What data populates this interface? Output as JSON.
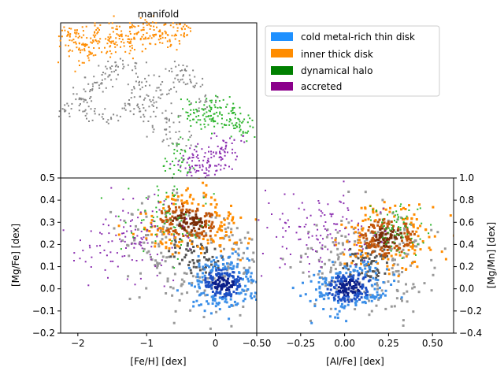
{
  "chart_data": [
    {
      "id": "manifold",
      "type": "scatter",
      "title": "manifold",
      "xlabel": "",
      "ylabel": "",
      "axes_visible": false,
      "xlim": [
        0,
        1
      ],
      "ylim": [
        0,
        1
      ],
      "series": [
        {
          "name": "cold metal-rich thin disk",
          "points": []
        },
        {
          "name": "inner thick disk",
          "region": "top-left band",
          "points": [
            [
              0.03,
              0.93
            ],
            [
              0.08,
              0.95
            ],
            [
              0.12,
              0.88
            ],
            [
              0.18,
              0.96
            ],
            [
              0.22,
              0.9
            ],
            [
              0.28,
              0.97
            ],
            [
              0.33,
              0.92
            ],
            [
              0.38,
              0.98
            ],
            [
              0.42,
              0.94
            ],
            [
              0.48,
              0.99
            ],
            [
              0.52,
              0.93
            ],
            [
              0.58,
              0.97
            ],
            [
              0.62,
              0.95
            ],
            [
              0.05,
              0.85
            ],
            [
              0.1,
              0.8
            ],
            [
              0.15,
              0.86
            ],
            [
              0.2,
              0.82
            ],
            [
              0.26,
              0.87
            ],
            [
              0.32,
              0.85
            ],
            [
              0.4,
              0.88
            ],
            [
              0.46,
              0.9
            ],
            [
              0.55,
              0.89
            ]
          ]
        },
        {
          "name": "dynamical halo",
          "region": "right lobe",
          "points": [
            [
              0.65,
              0.43
            ],
            [
              0.7,
              0.45
            ],
            [
              0.74,
              0.42
            ],
            [
              0.79,
              0.47
            ],
            [
              0.84,
              0.44
            ],
            [
              0.88,
              0.4
            ],
            [
              0.92,
              0.36
            ],
            [
              0.9,
              0.33
            ],
            [
              0.85,
              0.38
            ],
            [
              0.78,
              0.39
            ],
            [
              0.72,
              0.37
            ],
            [
              0.6,
              0.2
            ],
            [
              0.58,
              0.1
            ],
            [
              0.62,
              0.06
            ]
          ]
        },
        {
          "name": "accreted",
          "region": "lower right",
          "points": [
            [
              0.62,
              0.12
            ],
            [
              0.67,
              0.1
            ],
            [
              0.72,
              0.14
            ],
            [
              0.77,
              0.18
            ],
            [
              0.82,
              0.22
            ],
            [
              0.86,
              0.24
            ],
            [
              0.78,
              0.08
            ],
            [
              0.7,
              0.06
            ],
            [
              0.84,
              0.12
            ]
          ]
        },
        {
          "name": "other",
          "color": "#888888",
          "region": "central mass",
          "points": [
            [
              0.03,
              0.45
            ],
            [
              0.08,
              0.5
            ],
            [
              0.12,
              0.55
            ],
            [
              0.18,
              0.6
            ],
            [
              0.22,
              0.66
            ],
            [
              0.28,
              0.7
            ],
            [
              0.33,
              0.72
            ],
            [
              0.38,
              0.62
            ],
            [
              0.42,
              0.55
            ],
            [
              0.48,
              0.5
            ],
            [
              0.52,
              0.58
            ],
            [
              0.58,
              0.65
            ],
            [
              0.62,
              0.7
            ],
            [
              0.68,
              0.6
            ],
            [
              0.72,
              0.5
            ],
            [
              0.55,
              0.38
            ],
            [
              0.5,
              0.3
            ],
            [
              0.45,
              0.42
            ],
            [
              0.35,
              0.45
            ],
            [
              0.25,
              0.4
            ],
            [
              0.15,
              0.42
            ],
            [
              0.6,
              0.25
            ]
          ]
        }
      ]
    },
    {
      "id": "feh_mgfe",
      "type": "scatter",
      "xlabel": "[Fe/H] [dex]",
      "ylabel": "[Mg/Fe] [dex]",
      "xlim": [
        -2.25,
        0.6
      ],
      "ylim": [
        -0.2,
        0.5
      ],
      "xticks": [
        -2,
        -1,
        0
      ],
      "xtick_labels": [
        "−2",
        "−1",
        "0"
      ],
      "yticks": [
        -0.2,
        -0.1,
        0.0,
        0.1,
        0.2,
        0.3,
        0.4,
        0.5
      ],
      "ytick_labels": [
        "−0.2",
        "−0.1",
        "0.0",
        "0.1",
        "0.2",
        "0.3",
        "0.4",
        "0.5"
      ],
      "series": [
        {
          "name": "other",
          "color": "#888888",
          "center": [
            -0.3,
            0.15
          ],
          "spread": [
            0.55,
            0.1
          ],
          "angle": -0.6,
          "count": 260
        },
        {
          "name": "inner thick disk",
          "center": [
            -0.4,
            0.31
          ],
          "spread": [
            0.35,
            0.06
          ],
          "angle": -0.25,
          "count": 300
        },
        {
          "name": "cold metal-rich thin disk",
          "center": [
            0.1,
            0.03
          ],
          "spread": [
            0.22,
            0.05
          ],
          "angle": -0.1,
          "count": 300
        },
        {
          "name": "accreted",
          "center": [
            -1.3,
            0.22
          ],
          "spread": [
            0.45,
            0.09
          ],
          "angle": -0.15,
          "count": 120
        },
        {
          "name": "dynamical halo",
          "center": [
            -0.7,
            0.33
          ],
          "spread": [
            0.35,
            0.08
          ],
          "angle": 0.0,
          "count": 70
        }
      ]
    },
    {
      "id": "alfe_mgmn",
      "type": "scatter",
      "xlabel": "[Al/Fe] [dex]",
      "ylabel": "[Mg/Mn] [dex]",
      "ylabel_side": "right",
      "xlim": [
        -0.5,
        0.62
      ],
      "ylim": [
        -0.4,
        1.0
      ],
      "xticks": [
        -0.5,
        -0.25,
        0.0,
        0.25,
        0.5
      ],
      "xtick_labels": [
        "−0.50",
        "−0.25",
        "0.00",
        "0.25",
        "0.50"
      ],
      "yticks": [
        -0.4,
        -0.2,
        0.0,
        0.2,
        0.4,
        0.6,
        0.8,
        1.0
      ],
      "ytick_labels": [
        "−0.4",
        "−0.2",
        "0.0",
        "0.2",
        "0.4",
        "0.6",
        "0.8",
        "1.0"
      ],
      "series": [
        {
          "name": "other",
          "color": "#888888",
          "center": [
            0.12,
            0.25
          ],
          "spread": [
            0.18,
            0.22
          ],
          "angle": 0.8,
          "count": 260
        },
        {
          "name": "inner thick disk",
          "center": [
            0.24,
            0.48
          ],
          "spread": [
            0.12,
            0.13
          ],
          "angle": 0.3,
          "count": 300
        },
        {
          "name": "cold metal-rich thin disk",
          "center": [
            0.02,
            0.02
          ],
          "spread": [
            0.1,
            0.1
          ],
          "angle": 0.3,
          "count": 300
        },
        {
          "name": "accreted",
          "center": [
            -0.15,
            0.55
          ],
          "spread": [
            0.16,
            0.18
          ],
          "angle": 0.0,
          "count": 120
        },
        {
          "name": "dynamical halo",
          "center": [
            0.27,
            0.55
          ],
          "spread": [
            0.08,
            0.12
          ],
          "angle": 0.0,
          "count": 70
        }
      ]
    }
  ],
  "legend": {
    "placement": "upper-right",
    "items": [
      {
        "label": "cold metal-rich thin disk",
        "color": "#1e90ff"
      },
      {
        "label": "inner thick disk",
        "color": "#ff8c00"
      },
      {
        "label": "dynamical halo",
        "color": "#008000"
      },
      {
        "label": "accreted",
        "color": "#8b008b"
      }
    ]
  },
  "colors": {
    "cold metal-rich thin disk": "#1f6fd6",
    "inner thick disk": "#ff8c00",
    "dynamical halo": "#2db52d",
    "accreted": "#8b2fb0",
    "other": "#888888"
  }
}
